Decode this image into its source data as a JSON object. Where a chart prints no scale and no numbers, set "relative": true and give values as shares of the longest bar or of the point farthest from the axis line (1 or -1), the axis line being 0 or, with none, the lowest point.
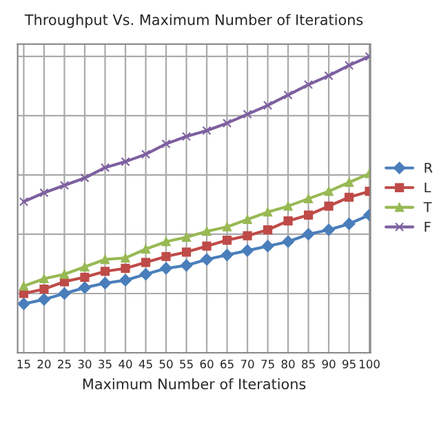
{
  "chart_data": {
    "type": "line",
    "title": "Throughput Vs. Maximum Number of Iterations",
    "xlabel": "Maximum Number of Iterations",
    "categories": [
      "15",
      "20",
      "25",
      "30",
      "35",
      "40",
      "45",
      "50",
      "55",
      "60",
      "65",
      "70",
      "75",
      "80",
      "85",
      "90",
      "95",
      "100"
    ],
    "relative": true,
    "grid": true,
    "legend": "right",
    "tick_labels": "x",
    "series": [
      {
        "name": "R",
        "color": "#4a7ebb",
        "marker": "diamond",
        "values": [
          0.165,
          0.18,
          0.2,
          0.22,
          0.235,
          0.245,
          0.265,
          0.285,
          0.295,
          0.315,
          0.33,
          0.345,
          0.36,
          0.375,
          0.4,
          0.415,
          0.435,
          0.465
        ]
      },
      {
        "name": "L",
        "color": "#be4b48",
        "marker": "square",
        "values": [
          0.2,
          0.215,
          0.24,
          0.255,
          0.275,
          0.285,
          0.305,
          0.325,
          0.34,
          0.36,
          0.38,
          0.395,
          0.415,
          0.445,
          0.465,
          0.495,
          0.525,
          0.545
        ]
      },
      {
        "name": "T",
        "color": "#98b954",
        "marker": "triangle",
        "values": [
          0.225,
          0.25,
          0.265,
          0.29,
          0.315,
          0.32,
          0.35,
          0.375,
          0.39,
          0.41,
          0.425,
          0.45,
          0.475,
          0.495,
          0.52,
          0.545,
          0.575,
          0.605
        ]
      },
      {
        "name": "F",
        "color": "#7d60a0",
        "marker": "cross",
        "values": [
          0.51,
          0.54,
          0.565,
          0.59,
          0.625,
          0.645,
          0.67,
          0.705,
          0.73,
          0.75,
          0.775,
          0.805,
          0.835,
          0.87,
          0.905,
          0.935,
          0.97,
          1
        ]
      }
    ]
  }
}
